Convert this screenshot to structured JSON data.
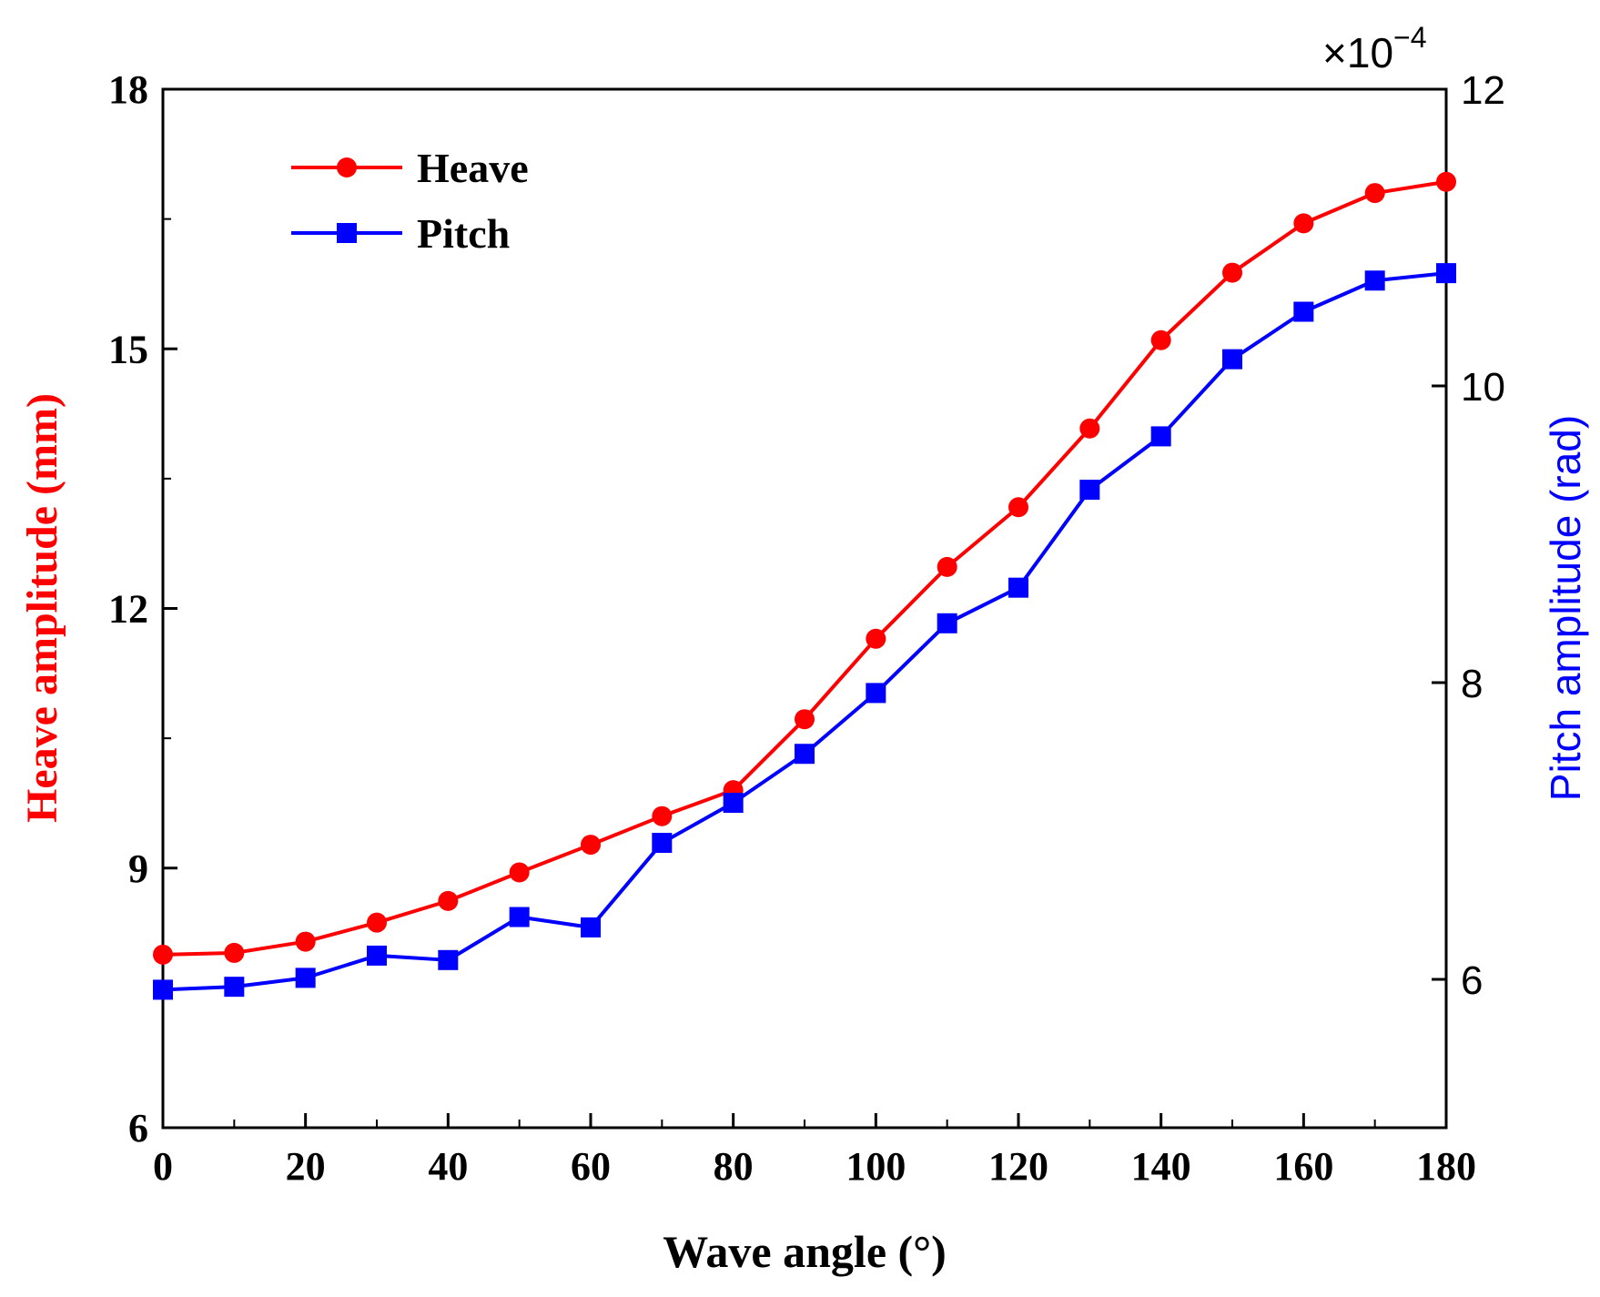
{
  "chart_data": {
    "type": "line",
    "x_label": "Wave angle (°)",
    "y_left_label": "Heave amplitude (mm)",
    "y_right_label": "Pitch amplitude (rad)",
    "y_right_multiplier_base": "×10",
    "y_right_multiplier_exponent": "−4",
    "x_range": [
      0,
      180
    ],
    "y_left_range": [
      6,
      18
    ],
    "y_right_range": [
      5,
      12
    ],
    "x_ticks": [
      0,
      20,
      40,
      60,
      80,
      100,
      120,
      140,
      160,
      180
    ],
    "y_left_ticks": [
      6,
      9,
      12,
      15,
      18
    ],
    "y_right_ticks": [
      6,
      8,
      10,
      12
    ],
    "x": [
      0,
      10,
      20,
      30,
      40,
      50,
      60,
      70,
      80,
      90,
      100,
      110,
      120,
      130,
      140,
      150,
      160,
      170,
      180
    ],
    "series": [
      {
        "name": "Heave",
        "axis": "left",
        "color": "#ff0000",
        "marker": "circle",
        "values": [
          8.0,
          8.02,
          8.15,
          8.37,
          8.62,
          8.95,
          9.27,
          9.6,
          9.9,
          10.72,
          11.65,
          12.48,
          13.17,
          14.08,
          15.1,
          15.88,
          16.45,
          16.8,
          16.93
        ]
      },
      {
        "name": "Pitch",
        "axis": "right",
        "color": "#0000ff",
        "marker": "square",
        "values": [
          5.93,
          5.95,
          6.01,
          6.16,
          6.13,
          6.42,
          6.35,
          6.92,
          7.19,
          7.52,
          7.93,
          8.4,
          8.64,
          9.3,
          9.66,
          10.18,
          10.5,
          10.71,
          10.76
        ]
      }
    ],
    "legend_position": "top-left"
  }
}
